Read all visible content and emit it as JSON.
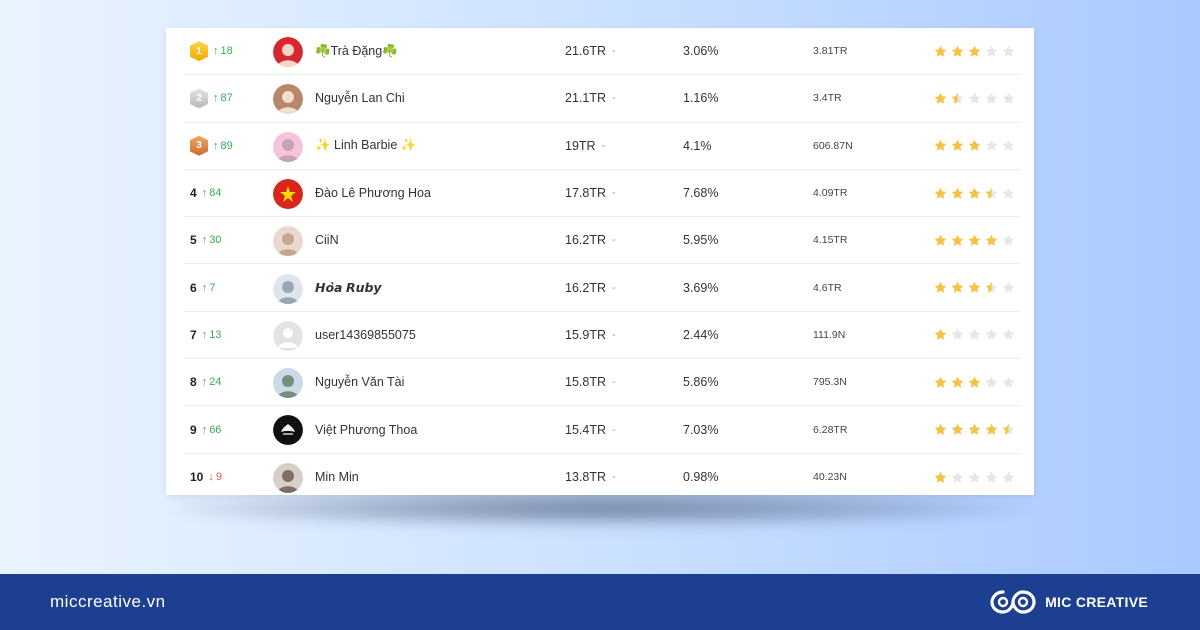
{
  "ranking": {
    "rows": [
      {
        "rank": "1",
        "medal": "gold",
        "change_dir": "up",
        "change": "18",
        "name": "☘️Trà Đặng☘️",
        "followers": "21.6TR",
        "dash": "-",
        "rate": "3.06%",
        "avg": "3.81TR",
        "stars": 3,
        "avatar_colors": [
          "#d6282f",
          "#f2d7c9"
        ]
      },
      {
        "rank": "2",
        "medal": "silver",
        "change_dir": "up",
        "change": "87",
        "name": "Nguyễn Lan Chi",
        "followers": "21.1TR",
        "dash": "-",
        "rate": "1.16%",
        "avg": "3.4TR",
        "stars": 1.5,
        "avatar_colors": [
          "#b9856b",
          "#f1ddd0"
        ]
      },
      {
        "rank": "3",
        "medal": "bronze",
        "change_dir": "up",
        "change": "89",
        "name": "✨ Linh Barbie ✨",
        "followers": "19TR",
        "dash": "-",
        "rate": "4.1%",
        "avg": "606.87N",
        "stars": 3,
        "avatar_colors": [
          "#f3c4dc",
          "#c9a2b6"
        ]
      },
      {
        "rank": "4",
        "medal": "",
        "change_dir": "up",
        "change": "84",
        "name": "Đào Lê Phương Hoa",
        "followers": "17.8TR",
        "dash": "-",
        "rate": "7.68%",
        "avg": "4.09TR",
        "stars": 3.5,
        "avatar_colors": [
          "#da251d",
          "#ffde00"
        ]
      },
      {
        "rank": "5",
        "medal": "",
        "change_dir": "up",
        "change": "30",
        "name": "CiiN",
        "followers": "16.2TR",
        "dash": "-",
        "rate": "5.95%",
        "avg": "4.15TR",
        "stars": 4,
        "avatar_colors": [
          "#e9d8cd",
          "#c7a68f"
        ]
      },
      {
        "rank": "6",
        "medal": "",
        "change_dir": "up",
        "change": "7",
        "name": "𝙃𝙤̀𝙖 𝙍𝙪𝙗𝙮",
        "followers": "16.2TR",
        "dash": "-",
        "rate": "3.69%",
        "avg": "4.6TR",
        "stars": 3.5,
        "avatar_colors": [
          "#dfe5ec",
          "#9aa6b4"
        ]
      },
      {
        "rank": "7",
        "medal": "",
        "change_dir": "up",
        "change": "13",
        "name": "user14369855075",
        "followers": "15.9TR",
        "dash": "-",
        "rate": "2.44%",
        "avg": "111.9N",
        "stars": 1,
        "avatar_colors": [
          "#e3e3e3",
          "#c8c8c8"
        ]
      },
      {
        "rank": "8",
        "medal": "",
        "change_dir": "up",
        "change": "24",
        "name": "Nguyễn Văn Tài",
        "followers": "15.8TR",
        "dash": "-",
        "rate": "5.86%",
        "avg": "795.3N",
        "stars": 3,
        "avatar_colors": [
          "#c9dbe6",
          "#7b8d7b"
        ]
      },
      {
        "rank": "9",
        "medal": "",
        "change_dir": "up",
        "change": "66",
        "name": "Việt Phương Thoa",
        "followers": "15.4TR",
        "dash": "-",
        "rate": "7.03%",
        "avg": "6.28TR",
        "stars": 4.5,
        "avatar_colors": [
          "#111111",
          "#f5f5f5"
        ]
      },
      {
        "rank": "10",
        "medal": "",
        "change_dir": "down",
        "change": "9",
        "name": "Min Min",
        "followers": "13.8TR",
        "dash": "-",
        "rate": "0.98%",
        "avg": "40.23N",
        "stars": 1,
        "avatar_colors": [
          "#d9cfc6",
          "#7c6f67"
        ]
      }
    ]
  },
  "footer": {
    "site": "miccreative.vn",
    "brand": "MIC CREATIVE",
    "logo_icon": "infinity-logo-icon"
  },
  "colors": {
    "star_filled": "#f6c244",
    "star_empty": "#e6e6e6",
    "change_up": "#3bab55",
    "change_down": "#e2553f",
    "footer_bg": "#1c3f91"
  }
}
